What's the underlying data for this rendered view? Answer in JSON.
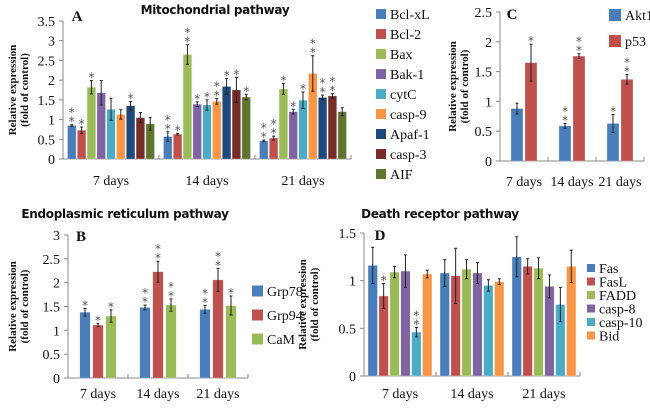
{
  "chart_data": [
    {
      "id": "A",
      "type": "bar",
      "letter": "A",
      "title": "Mitochondrial pathway",
      "ylabel": [
        "Relative expression",
        "(fold of control)"
      ],
      "xlabel": "",
      "ylim": [
        0,
        3.5
      ],
      "yticks": [
        0,
        0.5,
        1,
        1.5,
        2,
        2.5,
        3,
        3.5
      ],
      "ytick_labels": [
        "0",
        "0.5",
        "1",
        "1.5",
        "2",
        "2.5",
        "3",
        "3.5"
      ],
      "categories": [
        "7 days",
        "14 days",
        "21 days"
      ],
      "legend_position": "right",
      "series": [
        {
          "name": "Bcl-xL",
          "color": "#4a7ebb",
          "values": [
            0.85,
            0.57,
            0.46
          ],
          "errors": [
            0.02,
            0.12,
            0.02
          ],
          "sig": [
            "**",
            "**",
            "**"
          ]
        },
        {
          "name": "Bcl-2",
          "color": "#c0504d",
          "values": [
            0.73,
            0.63,
            0.53
          ],
          "errors": [
            0.08,
            0.02,
            0.05
          ],
          "sig": [
            "*",
            "*",
            "**"
          ]
        },
        {
          "name": "Bax",
          "color": "#9bbb59",
          "values": [
            1.82,
            2.65,
            1.78
          ],
          "errors": [
            0.17,
            0.25,
            0.14
          ],
          "sig": [
            "*",
            "**",
            "*"
          ]
        },
        {
          "name": "Bak-1",
          "color": "#8064a2",
          "values": [
            1.68,
            1.39,
            1.2
          ],
          "errors": [
            0.31,
            0.06,
            0.06
          ],
          "sig": [
            "",
            "*",
            "*"
          ]
        },
        {
          "name": "cytC",
          "color": "#4bacc6",
          "values": [
            1.26,
            1.37,
            1.49
          ],
          "errors": [
            0.28,
            0.13,
            0.21
          ],
          "sig": [
            "",
            "*",
            "*"
          ]
        },
        {
          "name": "casp-9",
          "color": "#f79646",
          "values": [
            1.13,
            1.46,
            2.17
          ],
          "errors": [
            0.12,
            0.07,
            0.45
          ],
          "sig": [
            "",
            "**",
            "**"
          ]
        },
        {
          "name": "Apaf-1",
          "color": "#1f497d",
          "values": [
            1.35,
            1.84,
            1.56
          ],
          "errors": [
            0.11,
            0.2,
            0.06
          ],
          "sig": [
            "*",
            "*",
            "**"
          ]
        },
        {
          "name": "casp-3",
          "color": "#772c2a",
          "values": [
            1.05,
            1.75,
            1.6
          ],
          "errors": [
            0.13,
            0.32,
            0.06
          ],
          "sig": [
            "",
            "*",
            "**"
          ]
        },
        {
          "name": "AIF",
          "color": "#5f7530",
          "values": [
            0.89,
            1.57,
            1.2
          ],
          "errors": [
            0.16,
            0.07,
            0.1
          ],
          "sig": [
            "",
            "*",
            ""
          ]
        }
      ]
    },
    {
      "id": "C",
      "type": "bar",
      "letter": "C",
      "title": "",
      "ylabel": [
        "Relative expression",
        "(fold of control)"
      ],
      "xlabel": "",
      "ylim": [
        0,
        2.5
      ],
      "yticks": [
        0,
        0.5,
        1,
        1.5,
        2,
        2.5
      ],
      "ytick_labels": [
        "0",
        "0.5",
        "1",
        "1.5",
        "2",
        "2.5"
      ],
      "categories": [
        "7 days",
        "14 days",
        "21 days"
      ],
      "legend_position": "top-right",
      "series": [
        {
          "name": "Akt1",
          "color": "#4a7ebb",
          "values": [
            0.88,
            0.59,
            0.63
          ],
          "errors": [
            0.09,
            0.04,
            0.15
          ],
          "sig": [
            "",
            "**",
            "*"
          ]
        },
        {
          "name": "p53",
          "color": "#c0504d",
          "values": [
            1.65,
            1.76,
            1.37
          ],
          "errors": [
            0.31,
            0.04,
            0.08
          ],
          "sig": [
            "*",
            "**",
            "**"
          ]
        }
      ]
    },
    {
      "id": "B",
      "type": "bar",
      "letter": "B",
      "title": "Endoplasmic reticulum pathway",
      "ylabel": [
        "Relative expression",
        "(fold of control)"
      ],
      "xlabel": "",
      "ylim": [
        0,
        3
      ],
      "yticks": [
        0,
        0.5,
        1,
        1.5,
        2,
        2.5,
        3
      ],
      "ytick_labels": [
        "0",
        "0.5",
        "1",
        "1.5",
        "2",
        "2.5",
        "3"
      ],
      "categories": [
        "7 days",
        "14 days",
        "21 days"
      ],
      "legend_position": "right",
      "series": [
        {
          "name": "Grp78",
          "color": "#4a7ebb",
          "values": [
            1.38,
            1.48,
            1.44
          ],
          "errors": [
            0.08,
            0.05,
            0.08
          ],
          "sig": [
            "*",
            "**",
            "**"
          ]
        },
        {
          "name": "Grp94",
          "color": "#c0504d",
          "values": [
            1.11,
            2.23,
            2.06
          ],
          "errors": [
            0.03,
            0.22,
            0.24
          ],
          "sig": [
            "*",
            "**",
            "**"
          ]
        },
        {
          "name": "CaM",
          "color": "#9bbb59",
          "values": [
            1.3,
            1.53,
            1.52
          ],
          "errors": [
            0.13,
            0.13,
            0.2
          ],
          "sig": [
            "*",
            "**",
            "*"
          ]
        }
      ]
    },
    {
      "id": "D",
      "type": "bar",
      "letter": "D",
      "title": "Death receptor pathway",
      "ylabel": [
        "Relative expression",
        "(fold of control)"
      ],
      "xlabel": "",
      "ylim": [
        0,
        1.5
      ],
      "yticks": [
        0,
        0.5,
        1,
        1.5
      ],
      "ytick_labels": [
        "0",
        "0.5",
        "1",
        "1.5"
      ],
      "categories": [
        "7 days",
        "14 days",
        "21 days"
      ],
      "legend_position": "right",
      "series": [
        {
          "name": "Fas",
          "color": "#4a7ebb",
          "values": [
            1.16,
            1.08,
            1.25
          ],
          "errors": [
            0.19,
            0.14,
            0.21
          ],
          "sig": [
            "",
            "",
            ""
          ]
        },
        {
          "name": "FasL",
          "color": "#c0504d",
          "values": [
            0.84,
            1.05,
            1.15
          ],
          "errors": [
            0.13,
            0.29,
            0.08
          ],
          "sig": [
            "*",
            "",
            ""
          ]
        },
        {
          "name": "FADD",
          "color": "#9bbb59",
          "values": [
            1.09,
            1.12,
            1.13
          ],
          "errors": [
            0.06,
            0.1,
            0.11
          ],
          "sig": [
            "",
            "",
            ""
          ]
        },
        {
          "name": "casp-8",
          "color": "#8064a2",
          "values": [
            1.1,
            1.08,
            0.94
          ],
          "errors": [
            0.17,
            0.11,
            0.12
          ],
          "sig": [
            "",
            "",
            ""
          ]
        },
        {
          "name": "casp-10",
          "color": "#4bacc6",
          "values": [
            0.46,
            0.95,
            0.75
          ],
          "errors": [
            0.05,
            0.06,
            0.18
          ],
          "sig": [
            "**",
            "",
            ""
          ]
        },
        {
          "name": "Bid",
          "color": "#f79646",
          "values": [
            1.07,
            0.99,
            1.15
          ],
          "errors": [
            0.04,
            0.03,
            0.17
          ],
          "sig": [
            "",
            "",
            ""
          ]
        }
      ]
    }
  ]
}
